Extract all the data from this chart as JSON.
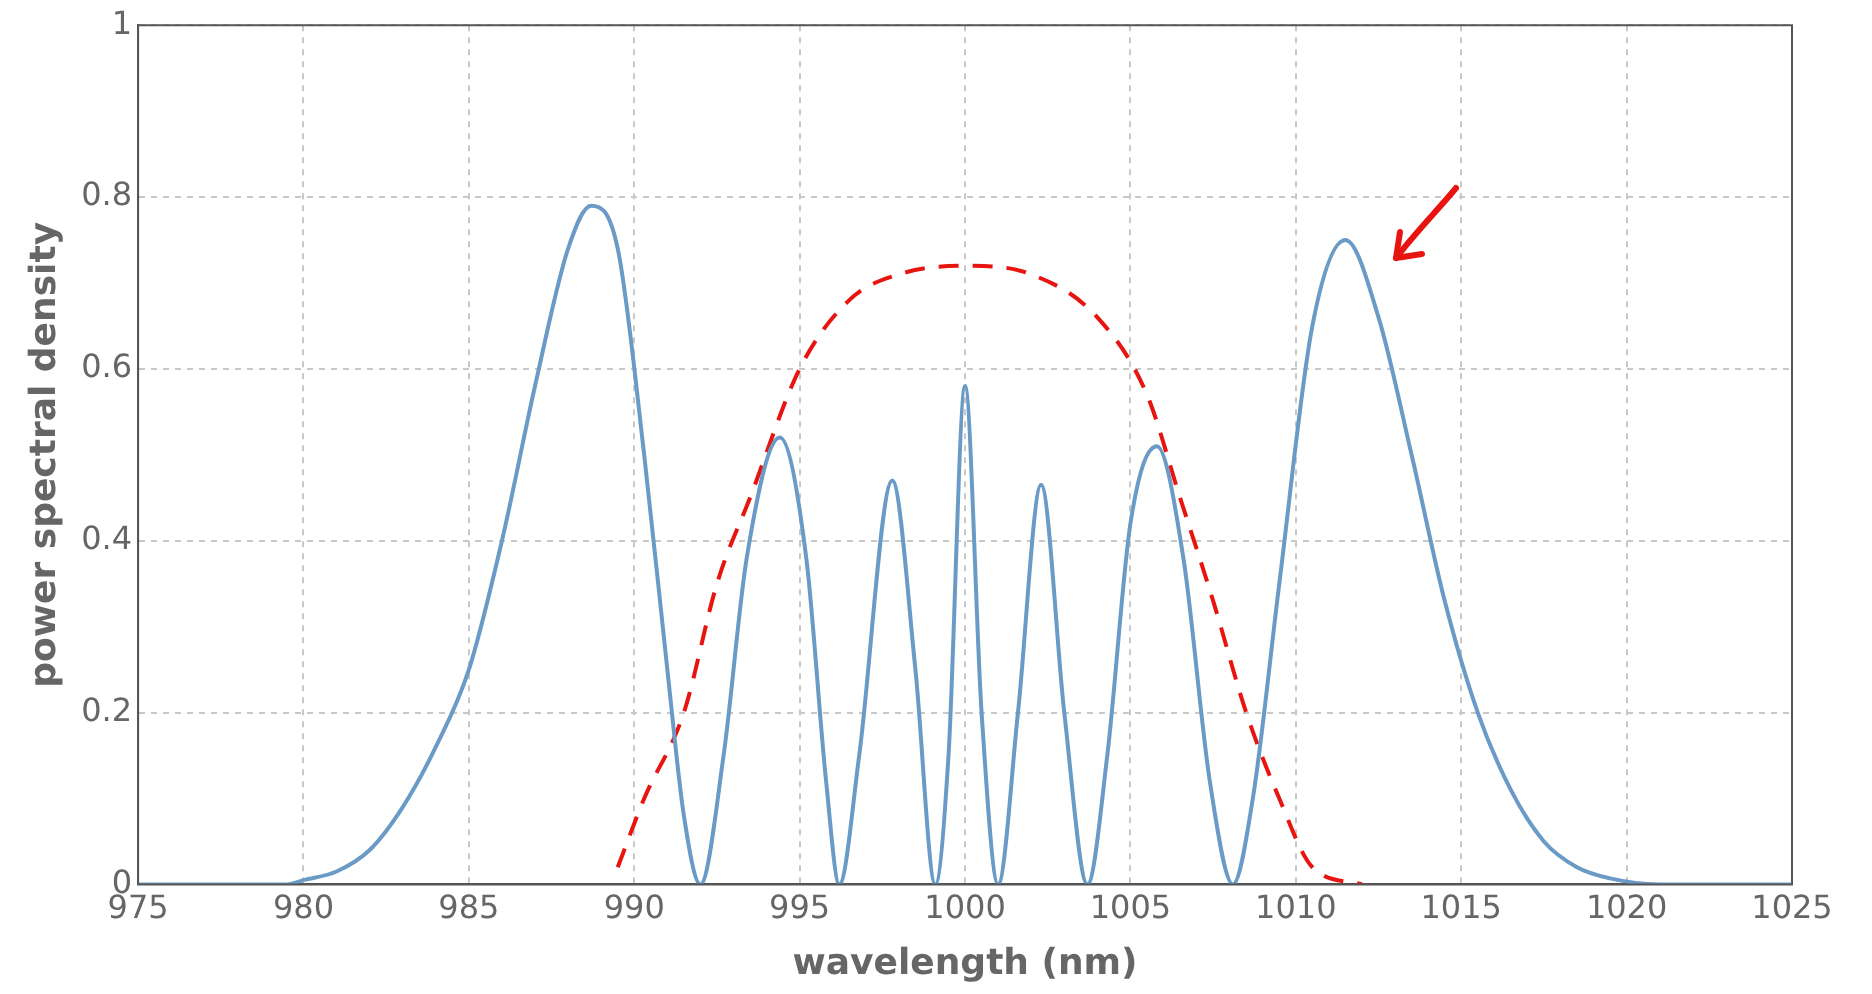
{
  "chart_data": {
    "type": "line",
    "xlabel": "wavelength (nm)",
    "ylabel": "power spectral density",
    "xlim": [
      975,
      1025
    ],
    "xticks": [
      975,
      980,
      985,
      990,
      995,
      1000,
      1005,
      1010,
      1015,
      1020,
      1025
    ],
    "ylim": [
      0,
      1
    ],
    "yticks": [
      0,
      0.2,
      0.4,
      0.6,
      0.8,
      1
    ],
    "grid": true,
    "legend": false,
    "marker": "none",
    "series": [
      {
        "color": "#6a9bc6",
        "line_style": "solid",
        "x": [
          975,
          979.5,
          980,
          981,
          982,
          983,
          984,
          985,
          986,
          987,
          988,
          988.7,
          989.5,
          990.3,
          991,
          991.5,
          992,
          992.7,
          993.4,
          994.4,
          995.2,
          995.8,
          996.2,
          996.8,
          997.8,
          998.5,
          999.1,
          999.5,
          1000,
          1000.5,
          1001,
          1001.6,
          1002.3,
          1003,
          1003.7,
          1004.3,
          1005,
          1005.8,
          1006.6,
          1007.4,
          1008.1,
          1008.7,
          1009.5,
          1010.5,
          1011.5,
          1012.5,
          1013.5,
          1014.5,
          1015.5,
          1016.5,
          1017.5,
          1018.5,
          1019.5,
          1021,
          1025
        ],
        "values": [
          0,
          0,
          0.005,
          0.015,
          0.04,
          0.09,
          0.16,
          0.25,
          0.4,
          0.58,
          0.74,
          0.79,
          0.74,
          0.5,
          0.25,
          0.08,
          0,
          0.15,
          0.38,
          0.52,
          0.38,
          0.12,
          0,
          0.15,
          0.47,
          0.25,
          0,
          0.15,
          0.58,
          0.2,
          0,
          0.2,
          0.465,
          0.2,
          0,
          0.15,
          0.42,
          0.51,
          0.38,
          0.12,
          0,
          0.1,
          0.35,
          0.65,
          0.75,
          0.66,
          0.5,
          0.33,
          0.2,
          0.11,
          0.05,
          0.02,
          0.007,
          0,
          0
        ]
      },
      {
        "color": "#e8140f",
        "line_style": "dashed",
        "x": [
          989.5,
          990.3,
          991.5,
          992.5,
          993.5,
          995,
          996.5,
          998,
          1000,
          1002,
          1004,
          1005.5,
          1006.5,
          1007.5,
          1008.5,
          1009.5,
          1010.5,
          1012
        ],
        "values": [
          0.02,
          0.1,
          0.2,
          0.35,
          0.45,
          0.6,
          0.68,
          0.71,
          0.72,
          0.71,
          0.66,
          0.57,
          0.45,
          0.33,
          0.2,
          0.1,
          0.02,
          0
        ]
      }
    ]
  }
}
